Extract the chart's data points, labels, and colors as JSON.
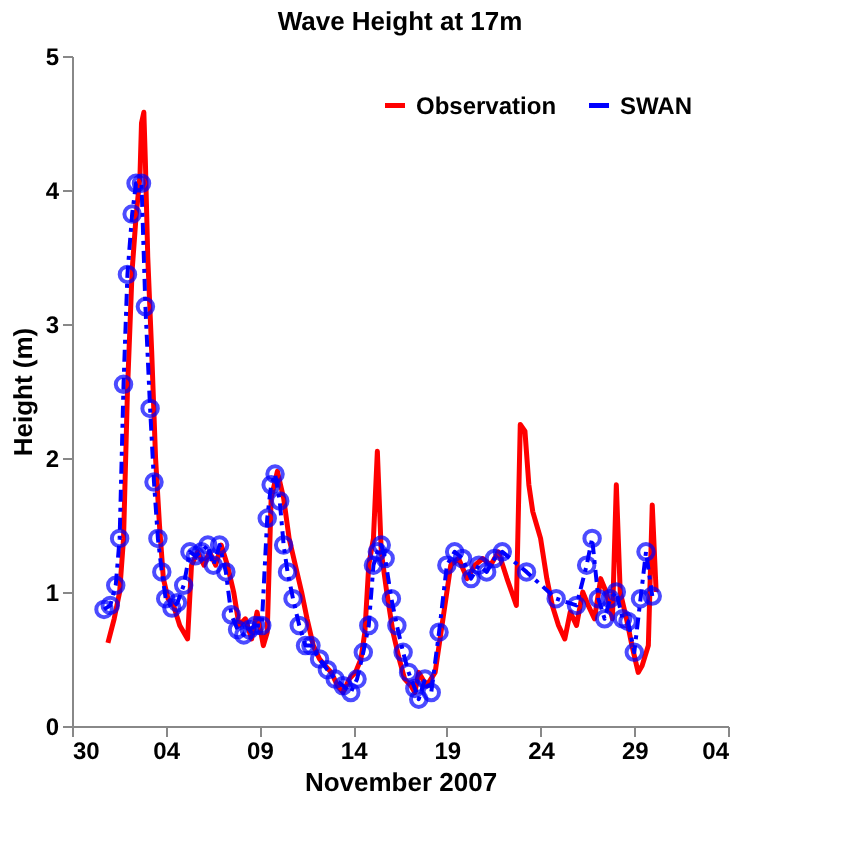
{
  "chart_data": {
    "type": "line",
    "title": "Wave Height at 17m",
    "xlabel": "November 2007",
    "ylabel": "Height (m)",
    "xlim": [
      "2007-10-30",
      "2007-12-04"
    ],
    "xticks": [
      {
        "value": "2007-10-30",
        "label": "30"
      },
      {
        "value": "2007-11-04",
        "label": "04"
      },
      {
        "value": "2007-11-09",
        "label": "09"
      },
      {
        "value": "2007-11-14",
        "label": "14"
      },
      {
        "value": "2007-11-19",
        "label": "19"
      },
      {
        "value": "2007-11-24",
        "label": "24"
      },
      {
        "value": "2007-11-29",
        "label": "29"
      },
      {
        "value": "2007-12-04",
        "label": "04"
      }
    ],
    "ylim": [
      0,
      5
    ],
    "yticks": [
      0,
      1,
      2,
      3,
      4,
      5
    ],
    "grid": false,
    "legend": "top right",
    "series": [
      {
        "name": "Observation",
        "color": "#ff0000",
        "marker": "none",
        "line_style": "solid",
        "x": [
          "2007-10-31T22:00",
          "2007-11-01T06:00",
          "2007-11-01T13:00",
          "2007-11-01T18:00",
          "2007-11-01T23:00",
          "2007-11-02T05:00",
          "2007-11-02T10:00",
          "2007-11-02T15:00",
          "2007-11-02T17:00",
          "2007-11-02T20:00",
          "2007-11-02T22:00",
          "2007-11-03T01:00",
          "2007-11-03T06:00",
          "2007-11-03T11:00",
          "2007-11-03T16:00",
          "2007-11-03T21:00",
          "2007-11-04T03:00",
          "2007-11-04T10:00",
          "2007-11-04T18:00",
          "2007-11-04T23:00",
          "2007-11-05T04:00",
          "2007-11-05T09:00",
          "2007-11-05T17:00",
          "2007-11-06T01:00",
          "2007-11-06T08:00",
          "2007-11-06T16:00",
          "2007-11-06T23:00",
          "2007-11-07T07:00",
          "2007-11-07T15:00",
          "2007-11-07T22:00",
          "2007-11-08T06:00",
          "2007-11-08T14:00",
          "2007-11-08T21:00",
          "2007-11-09T05:00",
          "2007-11-09T10:00",
          "2007-11-09T15:00",
          "2007-11-09T23:00",
          "2007-11-10T07:00",
          "2007-11-10T14:00",
          "2007-11-10T22:00",
          "2007-11-11T06:00",
          "2007-11-11T13:00",
          "2007-11-11T21:00",
          "2007-11-12T05:00",
          "2007-11-12T12:00",
          "2007-11-12T20:00",
          "2007-11-13T04:00",
          "2007-11-13T11:00",
          "2007-11-13T19:00",
          "2007-11-14T03:00",
          "2007-11-14T10:00",
          "2007-11-14T15:00",
          "2007-11-14T20:00",
          "2007-11-15T02:00",
          "2007-11-15T07:00",
          "2007-11-15T12:00",
          "2007-11-15T19:00",
          "2007-11-16T03:00",
          "2007-11-16T11:00",
          "2007-11-16T18:00",
          "2007-11-17T02:00",
          "2007-11-17T07:00",
          "2007-11-17T12:00",
          "2007-11-17T22:00",
          "2007-11-18T09:00",
          "2007-11-18T19:00",
          "2007-11-19T05:00",
          "2007-11-19T15:00",
          "2007-11-20T02:00",
          "2007-11-20T12:00",
          "2007-11-20T22:00",
          "2007-11-21T08:00",
          "2007-11-21T18:00",
          "2007-11-22T05:00",
          "2007-11-22T17:00",
          "2007-11-22T22:00",
          "2007-11-23T04:00",
          "2007-11-23T09:00",
          "2007-11-23T14:00",
          "2007-11-23T19:00",
          "2007-11-24T00:00",
          "2007-11-24T08:00",
          "2007-11-24T15:00",
          "2007-11-24T23:00",
          "2007-11-25T07:00",
          "2007-11-25T14:00",
          "2007-11-25T22:00",
          "2007-11-26T06:00",
          "2007-11-26T13:00",
          "2007-11-26T21:00",
          "2007-11-27T05:00",
          "2007-11-27T12:00",
          "2007-11-27T20:00",
          "2007-11-28T01:00",
          "2007-11-28T06:00",
          "2007-11-28T14:00",
          "2007-11-28T21:00",
          "2007-11-29T05:00",
          "2007-11-29T10:00",
          "2007-11-29T18:00",
          "2007-11-29T23:00",
          "2007-11-30T04:00"
        ],
        "values": [
          0.62,
          0.8,
          1.0,
          1.4,
          2.5,
          3.4,
          3.8,
          4.1,
          4.5,
          4.58,
          4.2,
          3.5,
          2.8,
          2.0,
          1.5,
          1.1,
          0.95,
          0.9,
          0.75,
          0.7,
          0.65,
          1.2,
          1.3,
          1.2,
          1.3,
          1.2,
          1.35,
          1.2,
          1.0,
          0.75,
          0.8,
          0.65,
          0.85,
          0.6,
          0.7,
          1.7,
          1.9,
          1.7,
          1.4,
          1.2,
          1.0,
          0.8,
          0.6,
          0.5,
          0.45,
          0.4,
          0.3,
          0.25,
          0.35,
          0.4,
          0.5,
          0.7,
          1.2,
          1.4,
          2.05,
          1.3,
          1.0,
          0.7,
          0.5,
          0.35,
          0.3,
          0.25,
          0.4,
          0.3,
          0.4,
          0.8,
          1.2,
          1.25,
          1.1,
          1.2,
          1.25,
          1.2,
          1.3,
          1.1,
          0.9,
          2.25,
          2.2,
          1.8,
          1.6,
          1.5,
          1.4,
          1.1,
          0.9,
          0.75,
          0.65,
          0.85,
          0.75,
          1.0,
          0.9,
          0.8,
          1.1,
          1.0,
          0.8,
          1.8,
          1.0,
          0.8,
          0.6,
          0.4,
          0.45,
          0.6,
          1.65,
          1.0
        ]
      },
      {
        "name": "SWAN",
        "color": "#0000ff",
        "marker": "circle",
        "line_style": "dashdot",
        "x": [
          "2007-10-31T17:00",
          "2007-11-01T01:00",
          "2007-11-01T08:00",
          "2007-11-01T13:00",
          "2007-11-01T18:00",
          "2007-11-01T23:00",
          "2007-11-02T05:00",
          "2007-11-02T10:00",
          "2007-11-02T17:00",
          "2007-11-02T22:00",
          "2007-11-03T04:00",
          "2007-11-03T09:00",
          "2007-11-03T14:00",
          "2007-11-03T19:00",
          "2007-11-04T00:00",
          "2007-11-04T08:00",
          "2007-11-04T15:00",
          "2007-11-04T23:00",
          "2007-11-05T07:00",
          "2007-11-05T14:00",
          "2007-11-05T22:00",
          "2007-11-06T06:00",
          "2007-11-06T13:00",
          "2007-11-06T21:00",
          "2007-11-07T05:00",
          "2007-11-07T12:00",
          "2007-11-07T20:00",
          "2007-11-08T04:00",
          "2007-11-08T11:00",
          "2007-11-08T19:00",
          "2007-11-09T03:00",
          "2007-11-09T10:00",
          "2007-11-09T15:00",
          "2007-11-09T20:00",
          "2007-11-10T02:00",
          "2007-11-10T07:00",
          "2007-11-10T12:00",
          "2007-11-10T19:00",
          "2007-11-11T03:00",
          "2007-11-11T11:00",
          "2007-11-11T18:00",
          "2007-11-12T05:00",
          "2007-11-12T15:00",
          "2007-11-13T01:00",
          "2007-11-13T11:00",
          "2007-11-13T21:00",
          "2007-11-14T05:00",
          "2007-11-14T13:00",
          "2007-11-14T20:00",
          "2007-11-15T02:00",
          "2007-11-15T07:00",
          "2007-11-15T12:00",
          "2007-11-15T17:00",
          "2007-11-16T01:00",
          "2007-11-16T08:00",
          "2007-11-16T16:00",
          "2007-11-16T23:00",
          "2007-11-17T07:00",
          "2007-11-17T12:00",
          "2007-11-17T20:00",
          "2007-11-18T04:00",
          "2007-11-18T14:00",
          "2007-11-19T00:00",
          "2007-11-19T10:00",
          "2007-11-19T20:00",
          "2007-11-20T07:00",
          "2007-11-20T17:00",
          "2007-11-21T03:00",
          "2007-11-21T13:00",
          "2007-11-21T23:00",
          "2007-11-23T06:00",
          "2007-11-24T20:00",
          "2007-11-25T22:00",
          "2007-11-26T11:00",
          "2007-11-26T18:00",
          "2007-11-27T02:00",
          "2007-11-27T10:00",
          "2007-11-27T17:00",
          "2007-11-28T01:00",
          "2007-11-28T09:00",
          "2007-11-28T16:00",
          "2007-11-29T00:00",
          "2007-11-29T08:00",
          "2007-11-29T15:00",
          "2007-11-29T23:00"
        ],
        "values": [
          0.87,
          0.9,
          1.05,
          1.4,
          2.55,
          3.37,
          3.82,
          4.05,
          4.05,
          3.13,
          2.37,
          1.82,
          1.4,
          1.15,
          0.95,
          0.88,
          0.92,
          1.05,
          1.3,
          1.27,
          1.3,
          1.35,
          1.2,
          1.35,
          1.15,
          0.83,
          0.72,
          0.68,
          0.72,
          0.75,
          0.75,
          1.55,
          1.8,
          1.88,
          1.68,
          1.35,
          1.15,
          0.95,
          0.75,
          0.6,
          0.6,
          0.5,
          0.42,
          0.35,
          0.3,
          0.25,
          0.35,
          0.55,
          0.75,
          1.2,
          1.3,
          1.35,
          1.25,
          0.95,
          0.75,
          0.55,
          0.4,
          0.28,
          0.2,
          0.35,
          0.25,
          0.7,
          1.2,
          1.3,
          1.25,
          1.1,
          1.2,
          1.15,
          1.25,
          1.3,
          1.15,
          0.95,
          0.9,
          1.2,
          1.4,
          0.95,
          0.8,
          0.95,
          1.0,
          0.8,
          0.78,
          0.55,
          0.95,
          1.3,
          0.97
        ]
      }
    ]
  }
}
